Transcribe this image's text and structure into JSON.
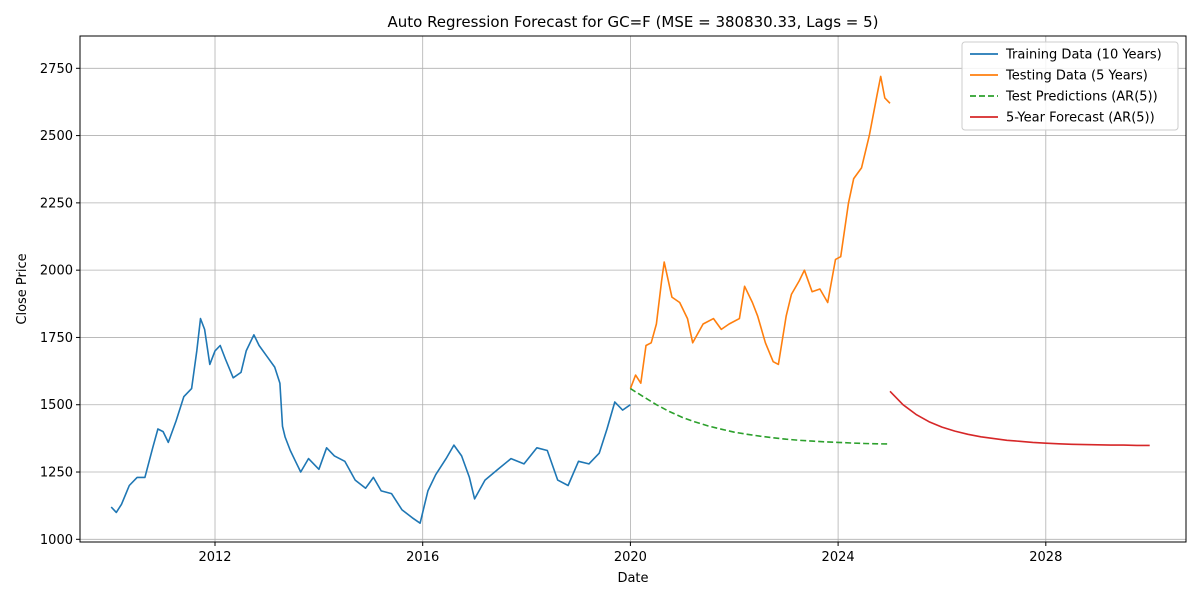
{
  "chart_data": {
    "type": "line",
    "title": "Auto Regression Forecast for GC=F (MSE = 380830.33, Lags = 5)",
    "xlabel": "Date",
    "ylabel": "Close Price",
    "xlim": [
      2009.4,
      2030.7
    ],
    "ylim": [
      990,
      2870
    ],
    "xticks": [
      2012,
      2016,
      2020,
      2024,
      2028
    ],
    "xtick_labels": [
      "2012",
      "2016",
      "2020",
      "2024",
      "2028"
    ],
    "yticks": [
      1000,
      1250,
      1500,
      1750,
      2000,
      2250,
      2500,
      2750
    ],
    "ytick_labels": [
      "1000",
      "1250",
      "1500",
      "1750",
      "2000",
      "2250",
      "2500",
      "2750"
    ],
    "grid": true,
    "legend_position": "top-right",
    "series": [
      {
        "name": "Training Data (10 Years)",
        "color": "#1f77b4",
        "style": "solid",
        "x": [
          2010.0,
          2010.1,
          2010.2,
          2010.35,
          2010.5,
          2010.65,
          2010.8,
          2010.9,
          2011.0,
          2011.1,
          2011.25,
          2011.4,
          2011.55,
          2011.65,
          2011.72,
          2011.8,
          2011.9,
          2012.0,
          2012.1,
          2012.2,
          2012.35,
          2012.5,
          2012.6,
          2012.75,
          2012.85,
          2013.0,
          2013.15,
          2013.25,
          2013.3,
          2013.35,
          2013.45,
          2013.55,
          2013.65,
          2013.8,
          2014.0,
          2014.15,
          2014.3,
          2014.5,
          2014.7,
          2014.9,
          2015.05,
          2015.2,
          2015.4,
          2015.6,
          2015.8,
          2015.95,
          2016.1,
          2016.25,
          2016.45,
          2016.6,
          2016.75,
          2016.9,
          2017.0,
          2017.2,
          2017.45,
          2017.7,
          2017.95,
          2018.2,
          2018.4,
          2018.6,
          2018.8,
          2019.0,
          2019.2,
          2019.4,
          2019.55,
          2019.7,
          2019.85,
          2020.0
        ],
        "y": [
          1120,
          1100,
          1130,
          1200,
          1230,
          1230,
          1340,
          1410,
          1400,
          1360,
          1440,
          1530,
          1560,
          1700,
          1820,
          1780,
          1650,
          1700,
          1720,
          1670,
          1600,
          1620,
          1700,
          1760,
          1720,
          1680,
          1640,
          1580,
          1420,
          1380,
          1330,
          1290,
          1250,
          1300,
          1260,
          1340,
          1310,
          1290,
          1220,
          1190,
          1230,
          1180,
          1170,
          1110,
          1080,
          1060,
          1180,
          1240,
          1300,
          1350,
          1310,
          1230,
          1150,
          1220,
          1260,
          1300,
          1280,
          1340,
          1330,
          1220,
          1200,
          1290,
          1280,
          1320,
          1410,
          1510,
          1480,
          1500
        ]
      },
      {
        "name": "Testing Data (5 Years)",
        "color": "#ff7f0e",
        "style": "solid",
        "x": [
          2020.0,
          2020.1,
          2020.2,
          2020.3,
          2020.4,
          2020.5,
          2020.6,
          2020.65,
          2020.8,
          2020.95,
          2021.1,
          2021.2,
          2021.4,
          2021.6,
          2021.75,
          2021.9,
          2022.1,
          2022.2,
          2022.35,
          2022.45,
          2022.6,
          2022.75,
          2022.85,
          2023.0,
          2023.1,
          2023.25,
          2023.35,
          2023.5,
          2023.65,
          2023.8,
          2023.95,
          2024.05,
          2024.2,
          2024.3,
          2024.45,
          2024.6,
          2024.75,
          2024.82,
          2024.9,
          2025.0
        ],
        "y": [
          1560,
          1610,
          1580,
          1720,
          1730,
          1800,
          1960,
          2030,
          1900,
          1880,
          1820,
          1730,
          1800,
          1820,
          1780,
          1800,
          1820,
          1940,
          1880,
          1830,
          1730,
          1660,
          1650,
          1830,
          1910,
          1960,
          2000,
          1920,
          1930,
          1880,
          2040,
          2050,
          2250,
          2340,
          2380,
          2500,
          2650,
          2720,
          2640,
          2620
        ]
      },
      {
        "name": "Test Predictions (AR(5))",
        "color": "#2ca02c",
        "style": "dashed",
        "x": [
          2020.0,
          2020.25,
          2020.5,
          2020.75,
          2021.0,
          2021.25,
          2021.5,
          2021.75,
          2022.0,
          2022.25,
          2022.5,
          2022.75,
          2023.0,
          2023.25,
          2023.5,
          2023.75,
          2024.0,
          2024.25,
          2024.5,
          2024.75,
          2025.0
        ],
        "y": [
          1560,
          1530,
          1500,
          1475,
          1453,
          1436,
          1421,
          1409,
          1398,
          1390,
          1383,
          1377,
          1372,
          1368,
          1365,
          1362,
          1360,
          1358,
          1356,
          1355,
          1354
        ]
      },
      {
        "name": "5-Year Forecast (AR(5))",
        "color": "#d62728",
        "style": "solid",
        "x": [
          2025.0,
          2025.25,
          2025.5,
          2025.75,
          2026.0,
          2026.25,
          2026.5,
          2026.75,
          2027.0,
          2027.25,
          2027.5,
          2027.75,
          2028.0,
          2028.25,
          2028.5,
          2028.75,
          2029.0,
          2029.25,
          2029.5,
          2029.75,
          2030.0
        ],
        "y": [
          1550,
          1500,
          1464,
          1437,
          1417,
          1402,
          1390,
          1381,
          1374,
          1368,
          1364,
          1360,
          1357,
          1355,
          1353,
          1352,
          1351,
          1350,
          1350,
          1349,
          1349
        ]
      }
    ]
  }
}
